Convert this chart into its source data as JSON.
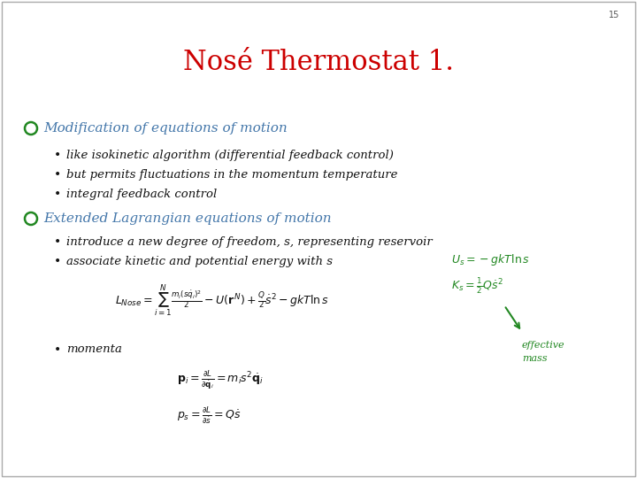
{
  "title": "Nosé Thermostat 1.",
  "title_color": "#cc0000",
  "title_fontsize": 22,
  "background_color": "#ffffff",
  "page_number": "15",
  "bullet_color": "#228822",
  "heading_color": "#4477aa",
  "green_color": "#228822",
  "red_color": "#cc0000",
  "text_color": "#111111",
  "bullet1_heading": "Modification of equations of motion",
  "bullet1_items": [
    "like isokinetic algorithm (differential feedback control)",
    "but permits fluctuations in the momentum temperature",
    "integral feedback control"
  ],
  "bullet2_heading": "Extended Lagrangian equations of motion",
  "bullet2_items": [
    "introduce a new degree of freedom, s, representing reservoir",
    "associate kinetic and potential energy with s"
  ]
}
